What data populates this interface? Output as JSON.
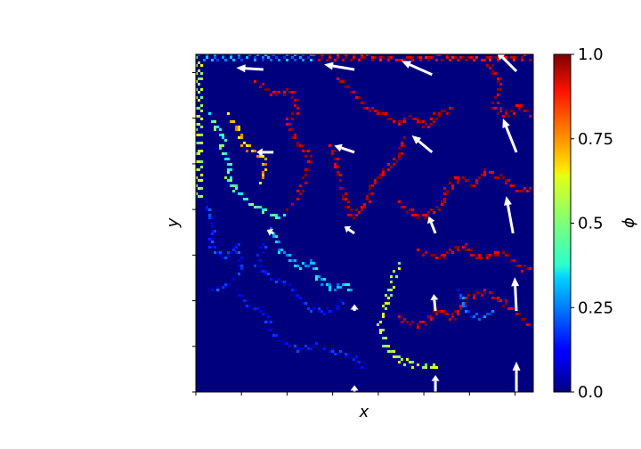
{
  "chart_data": {
    "type": "heatmap",
    "title": "",
    "xlabel": "x",
    "ylabel": "y",
    "x_ticks": 8,
    "y_ticks": 8,
    "x_tick_labels_shown": false,
    "y_tick_labels_shown": false,
    "colormap": "jet",
    "background_value": 0.0,
    "colorbar": {
      "label": "ϕ",
      "range": [
        0.0,
        1.0
      ],
      "ticks": [
        "0.0",
        "0.25",
        "0.5",
        "0.75",
        "1.0"
      ],
      "tick_values": [
        0.0,
        0.25,
        0.5,
        0.75,
        1.0
      ]
    },
    "domain": {
      "xlim": [
        0,
        1
      ],
      "ylim": [
        0,
        1
      ]
    },
    "interfaces": [
      {
        "name": "left-edge",
        "value": 0.55,
        "points": [
          [
            0.005,
            0.99
          ],
          [
            0.005,
            0.92
          ],
          [
            0.005,
            0.85
          ],
          [
            0.005,
            0.78
          ],
          [
            0.005,
            0.71
          ],
          [
            0.005,
            0.64
          ],
          [
            0.005,
            0.57
          ]
        ]
      },
      {
        "name": "top-edge",
        "value": 0.25,
        "points": [
          [
            0.01,
            0.995
          ],
          [
            0.15,
            0.995
          ],
          [
            0.25,
            0.995
          ],
          [
            0.35,
            0.995
          ]
        ]
      },
      {
        "name": "top-edge-red",
        "value": 0.92,
        "points": [
          [
            0.35,
            0.995
          ],
          [
            0.5,
            0.995
          ],
          [
            0.6,
            0.99
          ],
          [
            0.72,
            0.995
          ],
          [
            0.85,
            0.99
          ],
          [
            0.99,
            0.995
          ]
        ]
      },
      {
        "name": "green-cluster",
        "value": 0.45,
        "points": [
          [
            0.04,
            0.82
          ],
          [
            0.06,
            0.78
          ],
          [
            0.08,
            0.76
          ],
          [
            0.07,
            0.72
          ],
          [
            0.1,
            0.68
          ],
          [
            0.09,
            0.64
          ],
          [
            0.12,
            0.6
          ],
          [
            0.16,
            0.56
          ],
          [
            0.22,
            0.53
          ],
          [
            0.26,
            0.52
          ]
        ]
      },
      {
        "name": "yellow-cluster",
        "value": 0.7,
        "points": [
          [
            0.1,
            0.82
          ],
          [
            0.12,
            0.78
          ],
          [
            0.14,
            0.74
          ],
          [
            0.17,
            0.71
          ],
          [
            0.2,
            0.7
          ],
          [
            0.2,
            0.65
          ],
          [
            0.18,
            0.61
          ]
        ]
      },
      {
        "name": "blue-left",
        "value": 0.15,
        "points": [
          [
            0.03,
            0.56
          ],
          [
            0.05,
            0.5
          ],
          [
            0.04,
            0.44
          ],
          [
            0.08,
            0.4
          ],
          [
            0.12,
            0.44
          ],
          [
            0.13,
            0.36
          ],
          [
            0.09,
            0.32
          ],
          [
            0.04,
            0.3
          ]
        ]
      },
      {
        "name": "cyan-mid",
        "value": 0.3,
        "points": [
          [
            0.22,
            0.48
          ],
          [
            0.25,
            0.42
          ],
          [
            0.28,
            0.4
          ],
          [
            0.3,
            0.37
          ],
          [
            0.34,
            0.39
          ],
          [
            0.36,
            0.34
          ],
          [
            0.4,
            0.31
          ],
          [
            0.44,
            0.32
          ],
          [
            0.46,
            0.3
          ]
        ]
      },
      {
        "name": "blue-mid",
        "value": 0.12,
        "points": [
          [
            0.2,
            0.45
          ],
          [
            0.18,
            0.38
          ],
          [
            0.22,
            0.34
          ],
          [
            0.28,
            0.32
          ],
          [
            0.3,
            0.28
          ],
          [
            0.34,
            0.25
          ],
          [
            0.4,
            0.24
          ],
          [
            0.44,
            0.28
          ]
        ]
      },
      {
        "name": "blue-bottom-left",
        "value": 0.12,
        "points": [
          [
            0.12,
            0.3
          ],
          [
            0.15,
            0.26
          ],
          [
            0.2,
            0.24
          ],
          [
            0.22,
            0.18
          ],
          [
            0.26,
            0.15
          ],
          [
            0.3,
            0.13
          ],
          [
            0.36,
            0.14
          ],
          [
            0.42,
            0.12
          ],
          [
            0.48,
            0.1
          ],
          [
            0.5,
            0.07
          ]
        ]
      },
      {
        "name": "red-top-left",
        "value": 0.95,
        "points": [
          [
            0.18,
            0.92
          ],
          [
            0.24,
            0.88
          ],
          [
            0.28,
            0.9
          ],
          [
            0.3,
            0.84
          ],
          [
            0.27,
            0.8
          ],
          [
            0.3,
            0.74
          ],
          [
            0.34,
            0.7
          ],
          [
            0.32,
            0.64
          ],
          [
            0.3,
            0.58
          ],
          [
            0.26,
            0.53
          ]
        ]
      },
      {
        "name": "red-top-center",
        "value": 0.95,
        "points": [
          [
            0.42,
            0.93
          ],
          [
            0.46,
            0.89
          ],
          [
            0.5,
            0.85
          ],
          [
            0.56,
            0.82
          ],
          [
            0.6,
            0.8
          ],
          [
            0.64,
            0.82
          ],
          [
            0.68,
            0.79
          ],
          [
            0.72,
            0.83
          ],
          [
            0.76,
            0.85
          ]
        ]
      },
      {
        "name": "red-center",
        "value": 0.95,
        "points": [
          [
            0.4,
            0.73
          ],
          [
            0.42,
            0.65
          ],
          [
            0.44,
            0.58
          ],
          [
            0.46,
            0.52
          ],
          [
            0.5,
            0.56
          ],
          [
            0.52,
            0.62
          ],
          [
            0.56,
            0.66
          ],
          [
            0.6,
            0.7
          ],
          [
            0.62,
            0.76
          ]
        ]
      },
      {
        "name": "red-right",
        "value": 0.95,
        "points": [
          [
            0.6,
            0.56
          ],
          [
            0.66,
            0.52
          ],
          [
            0.72,
            0.55
          ],
          [
            0.74,
            0.6
          ],
          [
            0.78,
            0.64
          ],
          [
            0.82,
            0.62
          ],
          [
            0.86,
            0.66
          ],
          [
            0.9,
            0.64
          ],
          [
            0.95,
            0.6
          ],
          [
            0.99,
            0.6
          ]
        ]
      },
      {
        "name": "red-right-upper",
        "value": 0.95,
        "points": [
          [
            0.86,
            0.98
          ],
          [
            0.9,
            0.92
          ],
          [
            0.88,
            0.85
          ],
          [
            0.92,
            0.82
          ],
          [
            0.96,
            0.85
          ],
          [
            0.99,
            0.82
          ]
        ]
      },
      {
        "name": "red-right-mid",
        "value": 0.95,
        "points": [
          [
            0.66,
            0.42
          ],
          [
            0.72,
            0.4
          ],
          [
            0.78,
            0.44
          ],
          [
            0.84,
            0.4
          ],
          [
            0.9,
            0.42
          ],
          [
            0.95,
            0.38
          ],
          [
            0.99,
            0.36
          ]
        ]
      },
      {
        "name": "red-bottom-right",
        "value": 0.95,
        "points": [
          [
            0.6,
            0.22
          ],
          [
            0.66,
            0.2
          ],
          [
            0.72,
            0.25
          ],
          [
            0.76,
            0.22
          ],
          [
            0.8,
            0.28
          ],
          [
            0.86,
            0.3
          ],
          [
            0.92,
            0.26
          ],
          [
            0.99,
            0.2
          ]
        ]
      },
      {
        "name": "yellow-bottom",
        "value": 0.55,
        "points": [
          [
            0.6,
            0.38
          ],
          [
            0.58,
            0.33
          ],
          [
            0.56,
            0.26
          ],
          [
            0.54,
            0.2
          ],
          [
            0.56,
            0.14
          ],
          [
            0.6,
            0.1
          ],
          [
            0.66,
            0.08
          ],
          [
            0.72,
            0.08
          ]
        ]
      },
      {
        "name": "blue-right",
        "value": 0.2,
        "points": [
          [
            0.78,
            0.3
          ],
          [
            0.8,
            0.24
          ],
          [
            0.84,
            0.22
          ],
          [
            0.88,
            0.24
          ]
        ]
      }
    ],
    "arrows": [
      {
        "x": 0.2,
        "y": 0.955,
        "dx": -0.08,
        "dy": 0.005
      },
      {
        "x": 0.47,
        "y": 0.955,
        "dx": -0.09,
        "dy": 0.015
      },
      {
        "x": 0.7,
        "y": 0.94,
        "dx": -0.09,
        "dy": 0.04
      },
      {
        "x": 0.95,
        "y": 0.95,
        "dx": -0.06,
        "dy": 0.06
      },
      {
        "x": 0.47,
        "y": 0.71,
        "dx": -0.06,
        "dy": 0.02
      },
      {
        "x": 0.23,
        "y": 0.71,
        "dx": -0.05,
        "dy": 0.0
      },
      {
        "x": 0.7,
        "y": 0.71,
        "dx": -0.06,
        "dy": 0.05
      },
      {
        "x": 0.95,
        "y": 0.71,
        "dx": -0.04,
        "dy": 0.1
      },
      {
        "x": 0.94,
        "y": 0.47,
        "dx": -0.02,
        "dy": 0.11
      },
      {
        "x": 0.71,
        "y": 0.47,
        "dx": -0.02,
        "dy": 0.05
      },
      {
        "x": 0.47,
        "y": 0.47,
        "dx": -0.03,
        "dy": 0.02
      },
      {
        "x": 0.23,
        "y": 0.47,
        "dx": -0.02,
        "dy": 0.01
      },
      {
        "x": 0.95,
        "y": 0.24,
        "dx": -0.005,
        "dy": 0.1
      },
      {
        "x": 0.71,
        "y": 0.24,
        "dx": -0.005,
        "dy": 0.05
      },
      {
        "x": 0.47,
        "y": 0.24,
        "dx": 0.0,
        "dy": 0.02
      },
      {
        "x": 0.95,
        "y": 0.0,
        "dx": 0.0,
        "dy": 0.09
      },
      {
        "x": 0.71,
        "y": 0.0,
        "dx": 0.0,
        "dy": 0.05
      },
      {
        "x": 0.47,
        "y": 0.0,
        "dx": 0.0,
        "dy": 0.02
      }
    ]
  }
}
